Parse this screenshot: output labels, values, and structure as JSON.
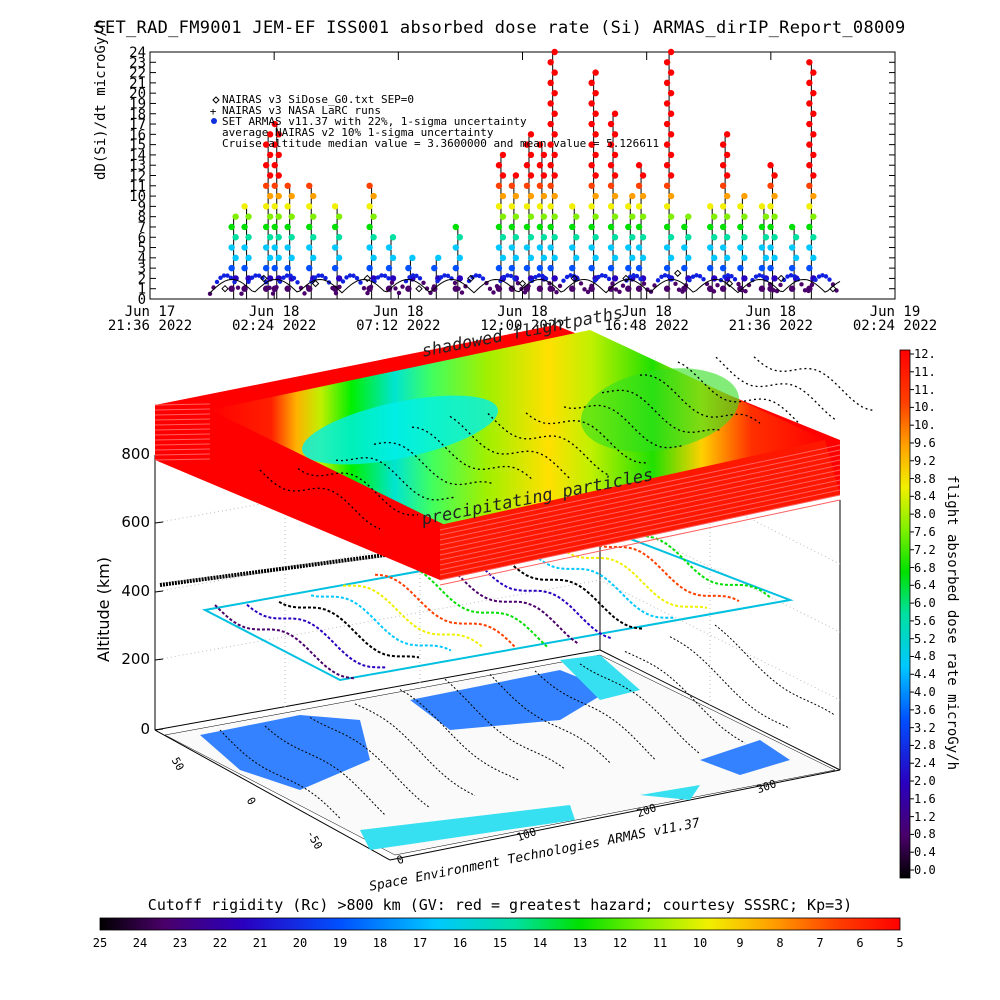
{
  "title": "SET_RAD_FM9001  JEM-EF ISS001 absorbed dose rate (Si) ARMAS_dirIP_Report_08009",
  "top_panel": {
    "ylabel": "dD(Si)/dt microGy/h",
    "legend": [
      "NAIRAS v3 SiDose_G0.txt SEP=0",
      "NAIRAS v3 NASA LaRC runs",
      "SET ARMAS v11.37 with 22%, 1-sigma uncertainty",
      "average NAIRAS v2 10% 1-sigma uncertainty",
      "Cruise altitude median value = 3.3600000 and mean value = 5.126611"
    ],
    "x_ticks": [
      {
        "line1": "Jun 17",
        "line2": "21:36 2022"
      },
      {
        "line1": "Jun 18",
        "line2": "02:24 2022"
      },
      {
        "line1": "Jun 18",
        "line2": "07:12 2022"
      },
      {
        "line1": "Jun 18",
        "line2": "12:00 2022"
      },
      {
        "line1": "Jun 18",
        "line2": "16:48 2022"
      },
      {
        "line1": "Jun 18",
        "line2": "21:36 2022"
      },
      {
        "line1": "Jun 19",
        "line2": "02:24 2022"
      }
    ]
  },
  "scene": {
    "ylabel": "Altitude (km)",
    "y_ticks": [
      "0",
      "200",
      "400",
      "600",
      "800"
    ],
    "lat_ticks": [
      "50",
      "0",
      "-50"
    ],
    "lon_ticks": [
      "0",
      "100",
      "200",
      "300"
    ],
    "label_shadowed": "shadowed flightpaths",
    "label_precip": "precipitating particles",
    "credit": "Space Environment Technologies ARMAS v11.37"
  },
  "right_colorbar": {
    "label": "flight absorbed dose rate microGy/h",
    "ticks": [
      "12.",
      "11.",
      "11.",
      "10.",
      "10.",
      "9.6",
      "9.2",
      "8.8",
      "8.4",
      "8.0",
      "7.6",
      "7.2",
      "6.8",
      "6.4",
      "6.0",
      "5.6",
      "5.2",
      "4.8",
      "4.4",
      "4.0",
      "3.6",
      "3.2",
      "2.8",
      "2.4",
      "2.0",
      "1.6",
      "1.2",
      "0.8",
      "0.4",
      "0.0"
    ]
  },
  "bottom_colorbar": {
    "label": "Cutoff rigidity (Rc) >800 km (GV: red = greatest hazard; courtesy SSSRC; Kp=3)",
    "ticks": [
      "25",
      "24",
      "23",
      "22",
      "21",
      "20",
      "19",
      "18",
      "17",
      "16",
      "15",
      "14",
      "13",
      "12",
      "11",
      "10",
      "9",
      "8",
      "7",
      "6",
      "5"
    ]
  },
  "chart_data": {
    "type": "scatter",
    "title": "SET_RAD_FM9001  JEM-EF ISS001 absorbed dose rate (Si) ARMAS_dirIP_Report_08009",
    "ylabel": "dD(Si)/dt microGy/h",
    "xlabel": "",
    "ylim": [
      0,
      24
    ],
    "y_ticks": [
      0,
      1,
      2,
      3,
      4,
      5,
      6,
      7,
      8,
      9,
      10,
      11,
      12,
      13,
      14,
      15,
      16,
      17,
      18,
      19,
      20,
      21,
      22,
      23,
      24
    ],
    "xlim": [
      "2022-06-17 21:36",
      "2022-06-19 02:24"
    ],
    "legend_placement": "top-left",
    "series": [
      {
        "name": "SET ARMAS v11.37 with 22%, 1-sigma uncertainty",
        "marker": "filled circle colored by dose rate",
        "points": [
          [
            "2022-06-18 00:50",
            8
          ],
          [
            "2022-06-18 01:20",
            9
          ],
          [
            "2022-06-18 02:10",
            16
          ],
          [
            "2022-06-18 02:30",
            17
          ],
          [
            "2022-06-18 03:00",
            11
          ],
          [
            "2022-06-18 03:50",
            11
          ],
          [
            "2022-06-18 04:50",
            9
          ],
          [
            "2022-06-18 06:10",
            11
          ],
          [
            "2022-06-18 06:55",
            6
          ],
          [
            "2022-06-18 07:40",
            4
          ],
          [
            "2022-06-18 08:40",
            4
          ],
          [
            "2022-06-18 09:30",
            7
          ],
          [
            "2022-06-18 11:10",
            14
          ],
          [
            "2022-06-18 11:40",
            12
          ],
          [
            "2022-06-18 12:15",
            16
          ],
          [
            "2022-06-18 12:45",
            15
          ],
          [
            "2022-06-18 13:10",
            24
          ],
          [
            "2022-06-18 14:00",
            9
          ],
          [
            "2022-06-18 14:45",
            22
          ],
          [
            "2022-06-18 15:30",
            18
          ],
          [
            "2022-06-18 16:10",
            10
          ],
          [
            "2022-06-18 16:35",
            13
          ],
          [
            "2022-06-18 17:40",
            24
          ],
          [
            "2022-06-18 18:20",
            8
          ],
          [
            "2022-06-18 19:20",
            9
          ],
          [
            "2022-06-18 19:50",
            16
          ],
          [
            "2022-06-18 20:30",
            10
          ],
          [
            "2022-06-18 21:20",
            9
          ],
          [
            "2022-06-18 21:40",
            13
          ],
          [
            "2022-06-18 22:30",
            7
          ],
          [
            "2022-06-18 23:10",
            23
          ]
        ]
      },
      {
        "name": "NAIRAS v3 SiDose_G0.txt SEP=0",
        "marker": "diamond",
        "points": [
          [
            "2022-06-18 00:30",
            1
          ],
          [
            "2022-06-18 02:00",
            2
          ],
          [
            "2022-06-18 04:00",
            1.5
          ],
          [
            "2022-06-18 06:00",
            2
          ],
          [
            "2022-06-18 08:00",
            1
          ],
          [
            "2022-06-18 10:00",
            2
          ],
          [
            "2022-06-18 12:00",
            1.5
          ],
          [
            "2022-06-18 14:00",
            2
          ],
          [
            "2022-06-18 16:00",
            2
          ],
          [
            "2022-06-18 18:00",
            2.5
          ],
          [
            "2022-06-18 20:00",
            1.5
          ],
          [
            "2022-06-18 22:00",
            2
          ],
          [
            "2022-06-19 00:00",
            1
          ]
        ]
      }
    ]
  }
}
